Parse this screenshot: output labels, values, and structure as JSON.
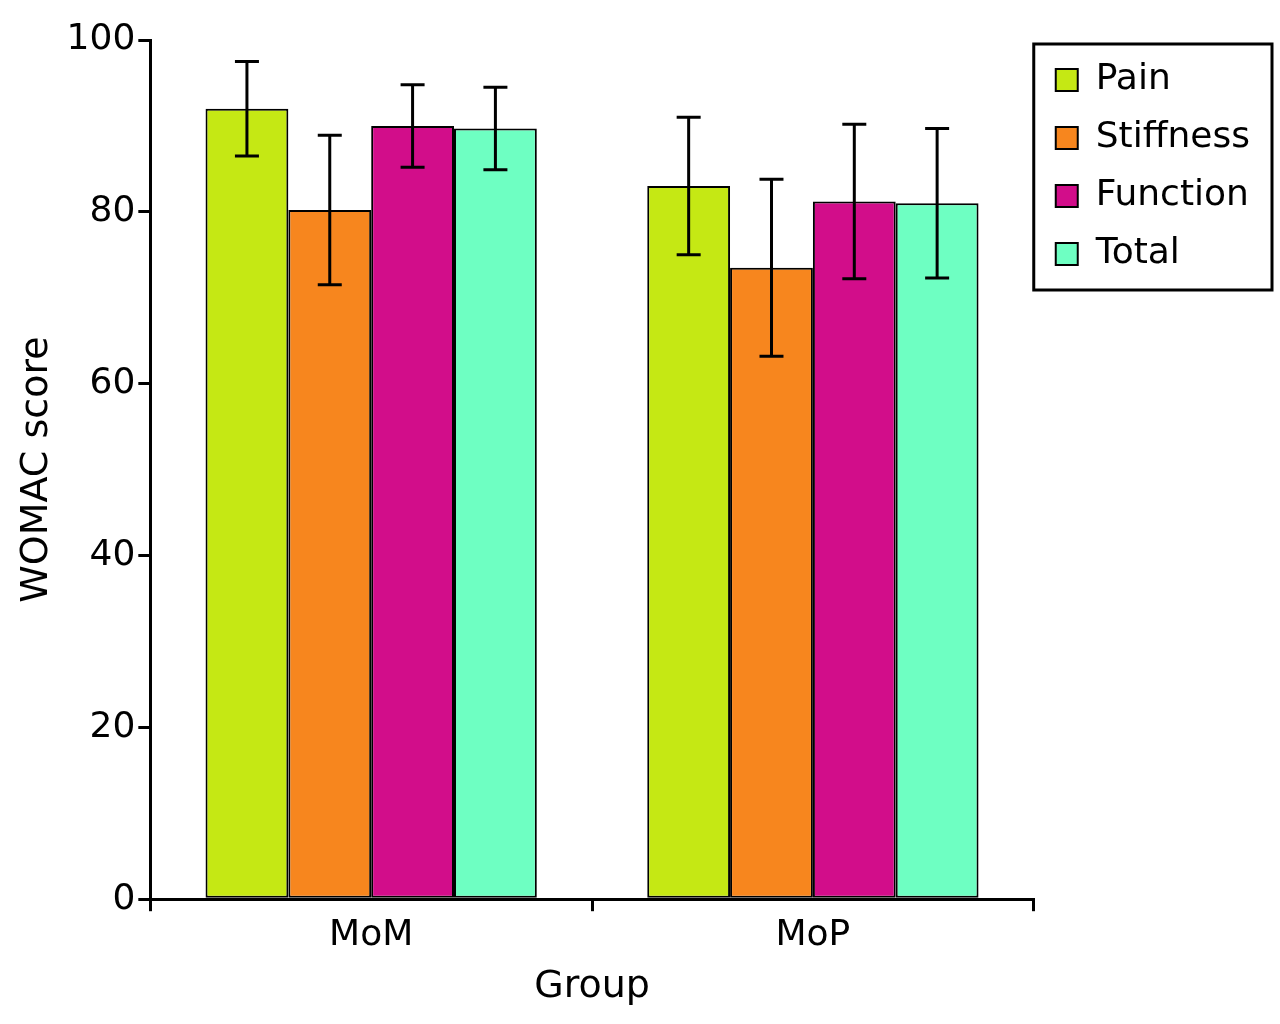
{
  "chart_data": {
    "type": "bar",
    "x_label": "Group",
    "y_label": "WOMAC score",
    "categories": [
      "MoM",
      "MoP"
    ],
    "ylim": [
      0,
      100
    ],
    "yticks": [
      0,
      20,
      40,
      60,
      80,
      100
    ],
    "grid": false,
    "legend": "right",
    "series": [
      {
        "name": "Pain",
        "color": "#c5e814",
        "values": [
          92,
          83
        ],
        "errors": [
          5.5,
          8
        ]
      },
      {
        "name": "Stiffness",
        "color": "#f7861e",
        "values": [
          80.2,
          73.5
        ],
        "errors": [
          8.7,
          10.3
        ]
      },
      {
        "name": "Function",
        "color": "#d20d8a",
        "values": [
          90,
          81.2
        ],
        "errors": [
          4.8,
          9
        ]
      },
      {
        "name": "Total",
        "color": "#6effc2",
        "values": [
          89.7,
          81
        ],
        "errors": [
          4.8,
          8.7
        ]
      }
    ]
  }
}
